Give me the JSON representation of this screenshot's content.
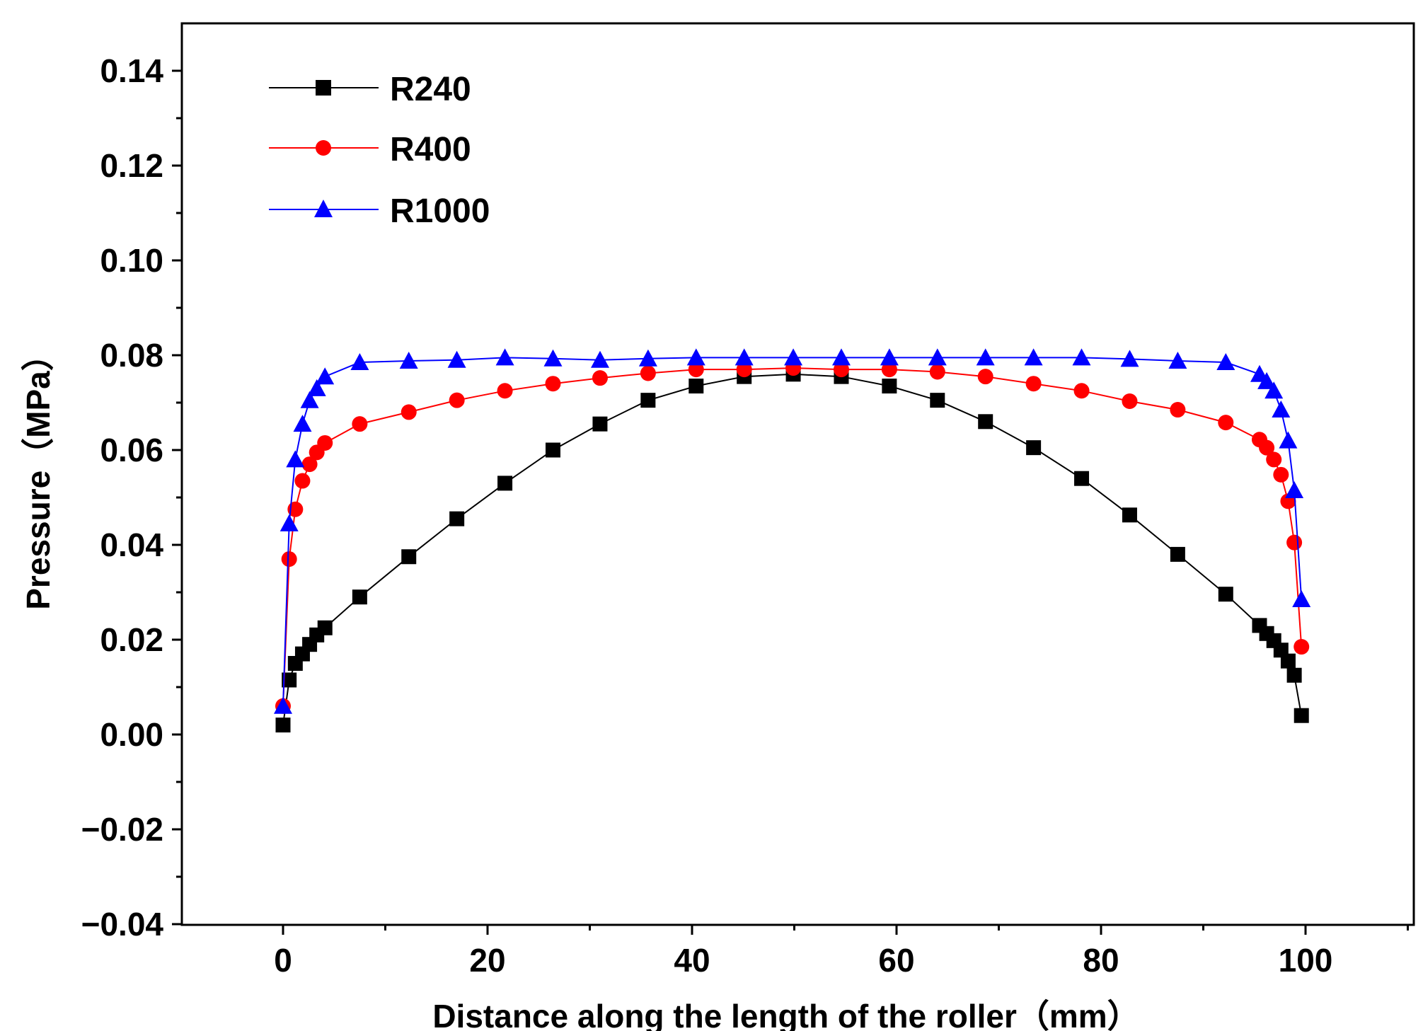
{
  "chart_data": {
    "type": "line",
    "title": "",
    "xlabel": "Distance along the length of the roller（mm）",
    "ylabel": "Pressure（MPa）",
    "xlim": [
      -10,
      110
    ],
    "ylim": [
      -0.04,
      0.15
    ],
    "xticks": [
      0,
      20,
      40,
      60,
      80,
      100
    ],
    "xtick_labels": [
      "0",
      "20",
      "40",
      "60",
      "80",
      "100"
    ],
    "yticks": [
      -0.04,
      -0.02,
      0.0,
      0.02,
      0.04,
      0.06,
      0.08,
      0.1,
      0.12,
      0.14
    ],
    "ytick_labels": [
      "−0.04",
      "−0.02",
      "0.00",
      "0.02",
      "0.04",
      "0.06",
      "0.08",
      "0.10",
      "0.12",
      "0.14"
    ],
    "grid": false,
    "legend_position": "top-left",
    "series": [
      {
        "name": "R240",
        "color": "#000000",
        "marker": "square",
        "x": [
          0,
          0.6,
          1.2,
          1.9,
          2.6,
          3.3,
          4.1,
          7.5,
          12.3,
          17,
          21.7,
          26.4,
          31,
          35.7,
          40.4,
          45.1,
          49.9,
          54.6,
          59.3,
          64,
          68.7,
          73.4,
          78.1,
          82.8,
          87.5,
          92.2,
          95.5,
          96.2,
          96.9,
          97.6,
          98.3,
          98.9,
          99.6
        ],
        "y": [
          0.002,
          0.0115,
          0.015,
          0.017,
          0.019,
          0.021,
          0.0225,
          0.029,
          0.0375,
          0.0455,
          0.053,
          0.06,
          0.0655,
          0.0705,
          0.0735,
          0.0755,
          0.076,
          0.0755,
          0.0735,
          0.0705,
          0.066,
          0.0605,
          0.054,
          0.0463,
          0.038,
          0.0296,
          0.023,
          0.0213,
          0.0198,
          0.0178,
          0.0155,
          0.0125,
          0.004
        ]
      },
      {
        "name": "R400",
        "color": "#ff0000",
        "marker": "circle",
        "x": [
          0,
          0.6,
          1.2,
          1.9,
          2.6,
          3.3,
          4.1,
          7.5,
          12.3,
          17,
          21.7,
          26.4,
          31,
          35.7,
          40.4,
          45.1,
          49.9,
          54.6,
          59.3,
          64,
          68.7,
          73.4,
          78.1,
          82.8,
          87.5,
          92.2,
          95.5,
          96.2,
          96.9,
          97.6,
          98.3,
          98.9,
          99.6
        ],
        "y": [
          0.006,
          0.037,
          0.0475,
          0.0535,
          0.057,
          0.0595,
          0.0615,
          0.0655,
          0.068,
          0.0705,
          0.0725,
          0.074,
          0.0752,
          0.0762,
          0.077,
          0.077,
          0.0773,
          0.077,
          0.077,
          0.0765,
          0.0755,
          0.074,
          0.0725,
          0.0703,
          0.0685,
          0.0658,
          0.0622,
          0.0605,
          0.058,
          0.0548,
          0.0492,
          0.0405,
          0.0185
        ]
      },
      {
        "name": "R1000",
        "color": "#0000ff",
        "marker": "triangle",
        "x": [
          0,
          0.6,
          1.2,
          1.9,
          2.6,
          3.3,
          4.1,
          7.5,
          12.3,
          17,
          21.7,
          26.4,
          31,
          35.7,
          40.4,
          45.1,
          49.9,
          54.6,
          59.3,
          64,
          68.7,
          73.4,
          78.1,
          82.8,
          87.5,
          92.2,
          95.5,
          96.2,
          96.9,
          97.6,
          98.3,
          98.9,
          99.6
        ],
        "y": [
          0.006,
          0.0445,
          0.058,
          0.0655,
          0.0705,
          0.073,
          0.0755,
          0.0785,
          0.0788,
          0.079,
          0.0795,
          0.0793,
          0.079,
          0.0793,
          0.0795,
          0.0795,
          0.0795,
          0.0795,
          0.0795,
          0.0795,
          0.0795,
          0.0795,
          0.0795,
          0.0792,
          0.0788,
          0.0785,
          0.076,
          0.0745,
          0.0725,
          0.0685,
          0.062,
          0.0515,
          0.0285
        ]
      }
    ]
  }
}
